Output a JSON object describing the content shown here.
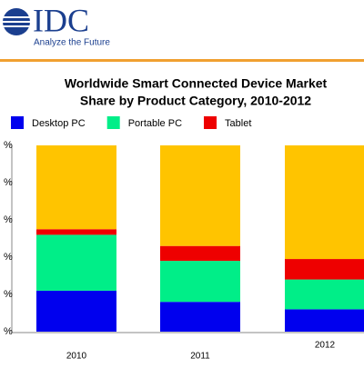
{
  "logo": {
    "name": "IDC",
    "tagline": "Analyze the Future"
  },
  "chart_data": {
    "type": "bar",
    "stacked": true,
    "title": [
      "Worldwide Smart Connected Device Market",
      "Share by Product Category, 2010-2012"
    ],
    "categories": [
      "2010",
      "2011",
      "2012"
    ],
    "series": [
      {
        "name": "Desktop PC",
        "color": "#0000ee",
        "values": [
          22,
          16,
          12
        ]
      },
      {
        "name": "Portable PC",
        "color": "#00ee88",
        "values": [
          30,
          22,
          16
        ]
      },
      {
        "name": "Tablet",
        "color": "#ee0000",
        "values": [
          3,
          8,
          11
        ]
      },
      {
        "color": "#ffc400",
        "values": [
          45,
          54,
          61
        ]
      }
    ],
    "ylim": [
      0,
      100
    ],
    "yticks": [
      {
        "value": 0,
        "label": "%"
      },
      {
        "value": 20,
        "label": "%"
      },
      {
        "value": 40,
        "label": "%"
      },
      {
        "value": 60,
        "label": "%"
      },
      {
        "value": 80,
        "label": "%"
      },
      {
        "value": 100,
        "label": "%"
      }
    ]
  }
}
